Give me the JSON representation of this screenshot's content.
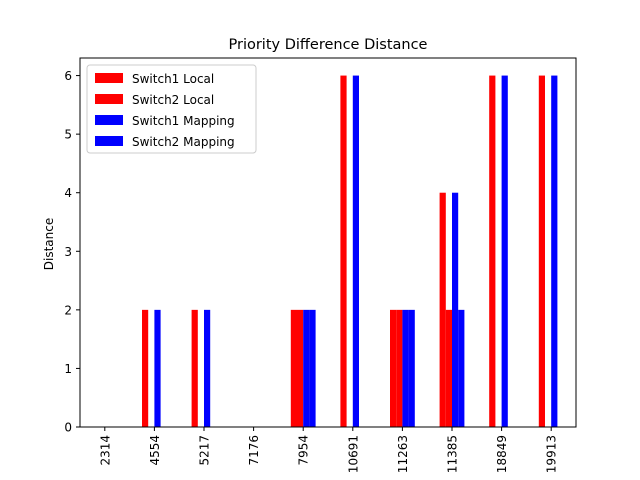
{
  "chart_data": {
    "type": "bar",
    "title": "Priority Difference Distance",
    "xlabel": "",
    "ylabel": "Distance",
    "categories": [
      "2314",
      "4554",
      "5217",
      "7176",
      "7954",
      "10691",
      "11263",
      "11385",
      "18849",
      "19913"
    ],
    "ylim": [
      0,
      6.3
    ],
    "yticks": [
      0,
      1,
      2,
      3,
      4,
      5,
      6
    ],
    "grid": false,
    "legend_position": "upper left",
    "series": [
      {
        "name": "Switch1 Local",
        "color": "#ff0000",
        "values": [
          0,
          2,
          2,
          0,
          2,
          6,
          2,
          4,
          6,
          6
        ]
      },
      {
        "name": "Switch2 Local",
        "color": "#ff0000",
        "values": [
          0,
          0,
          0,
          0,
          2,
          0,
          2,
          2,
          0,
          0
        ]
      },
      {
        "name": "Switch1 Mapping",
        "color": "#0000ff",
        "values": [
          0,
          2,
          2,
          0,
          2,
          6,
          2,
          4,
          6,
          6
        ]
      },
      {
        "name": "Switch2 Mapping",
        "color": "#0000ff",
        "values": [
          0,
          0,
          0,
          0,
          2,
          0,
          2,
          2,
          0,
          0
        ]
      }
    ]
  }
}
